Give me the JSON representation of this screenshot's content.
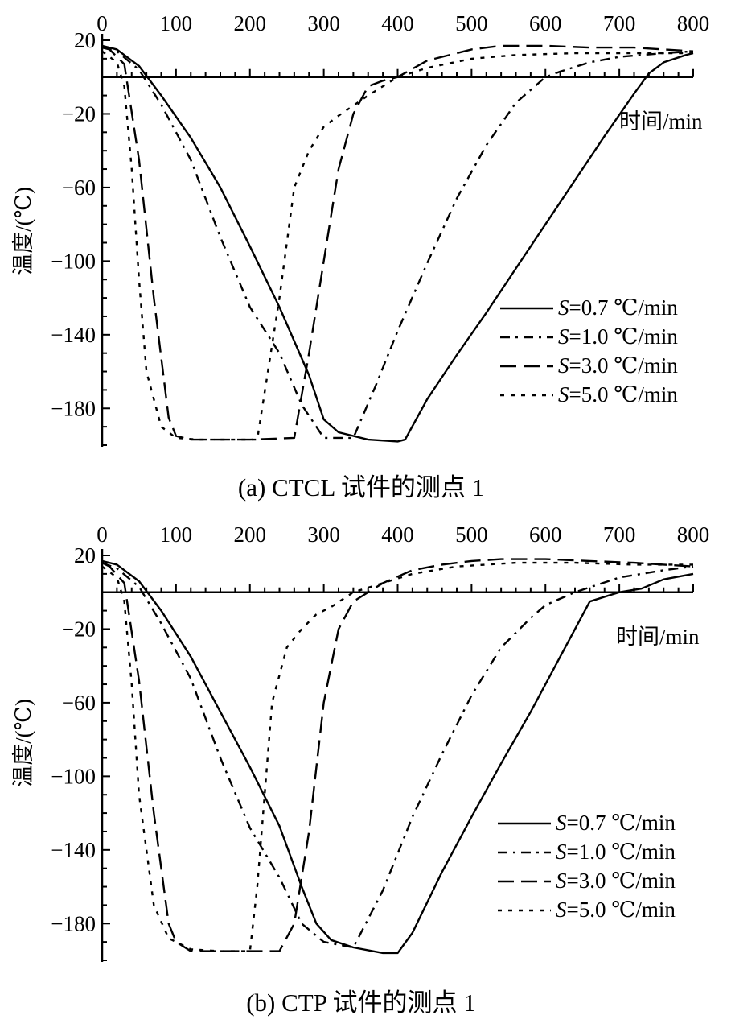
{
  "chart_data": [
    {
      "type": "line",
      "caption": "(a) CTCL 试件的测点 1",
      "xlabel": "时间/min",
      "ylabel": "温度/(℃)",
      "x_ticks": [
        0,
        100,
        200,
        300,
        400,
        500,
        600,
        700,
        800
      ],
      "y_ticks": [
        20,
        -20,
        -60,
        -100,
        -140,
        -180
      ],
      "xlim": [
        0,
        800
      ],
      "ylim": [
        -200,
        20
      ],
      "legend": {
        "position": "right"
      },
      "series": [
        {
          "name": "S=0.7 ℃/min",
          "dash": "solid",
          "x": [
            0,
            20,
            50,
            80,
            120,
            160,
            200,
            240,
            280,
            300,
            320,
            360,
            400,
            410,
            440,
            480,
            520,
            560,
            600,
            640,
            680,
            720,
            740,
            760,
            790,
            800
          ],
          "y": [
            17,
            15,
            6,
            -10,
            -33,
            -60,
            -92,
            -125,
            -162,
            -186,
            -193,
            -197,
            -198,
            -197,
            -175,
            -151,
            -128,
            -104,
            -80,
            -56,
            -32,
            -9,
            2,
            8,
            12,
            13
          ]
        },
        {
          "name": "S=1.0 ℃/min",
          "dash": "dash-dot",
          "x": [
            0,
            20,
            50,
            80,
            120,
            160,
            200,
            240,
            270,
            300,
            340,
            370,
            400,
            440,
            480,
            520,
            560,
            600,
            620,
            660,
            700,
            760,
            800
          ],
          "y": [
            16,
            14,
            4,
            -15,
            -45,
            -87,
            -125,
            -150,
            -178,
            -196,
            -196,
            -168,
            -138,
            -101,
            -66,
            -37,
            -14,
            0,
            3,
            8,
            11,
            13,
            14
          ]
        },
        {
          "name": "S=3.0 ℃/min",
          "dash": "dash",
          "x": [
            0,
            10,
            30,
            50,
            70,
            90,
            100,
            120,
            200,
            260,
            280,
            300,
            320,
            340,
            360,
            380,
            400,
            440,
            500,
            540,
            600,
            660,
            720,
            760,
            800
          ],
          "y": [
            17,
            15,
            7,
            -45,
            -120,
            -185,
            -195,
            -197,
            -197,
            -196,
            -150,
            -100,
            -50,
            -20,
            -5,
            -2,
            0,
            9,
            15,
            17,
            17,
            16,
            16,
            15,
            14
          ]
        },
        {
          "name": "S=5.0 ℃/min",
          "dash": "dot",
          "x": [
            0,
            20,
            30,
            40,
            50,
            60,
            80,
            100,
            130,
            160,
            200,
            210,
            240,
            260,
            280,
            300,
            320,
            360,
            400,
            440,
            500,
            560,
            640,
            720,
            800
          ],
          "y": [
            14,
            8,
            -5,
            -50,
            -110,
            -160,
            -190,
            -196,
            -197,
            -197,
            -197,
            -197,
            -120,
            -60,
            -40,
            -27,
            -21,
            -10,
            0,
            5,
            10,
            12,
            13,
            13,
            13
          ]
        }
      ],
      "legend_entries": [
        {
          "var": "S",
          "text": "=0.7 ℃/min"
        },
        {
          "var": "S",
          "text": "=1.0 ℃/min"
        },
        {
          "var": "S",
          "text": "=3.0 ℃/min"
        },
        {
          "var": "S",
          "text": "=5.0 ℃/min"
        }
      ]
    },
    {
      "type": "line",
      "caption": "(b) CTP 试件的测点 1",
      "xlabel": "时间/min",
      "ylabel": "温度/(℃)",
      "x_ticks": [
        0,
        100,
        200,
        300,
        400,
        500,
        600,
        700,
        800
      ],
      "y_ticks": [
        20,
        -20,
        -60,
        -100,
        -140,
        -180
      ],
      "xlim": [
        0,
        800
      ],
      "ylim": [
        -200,
        20
      ],
      "legend": {
        "position": "right"
      },
      "series": [
        {
          "name": "S=0.7 ℃/min",
          "dash": "solid",
          "x": [
            0,
            20,
            50,
            80,
            120,
            160,
            200,
            240,
            270,
            290,
            310,
            340,
            380,
            400,
            420,
            460,
            500,
            540,
            580,
            620,
            660,
            700,
            730,
            760,
            800
          ],
          "y": [
            17,
            15,
            6,
            -10,
            -35,
            -65,
            -95,
            -127,
            -160,
            -180,
            -189,
            -193,
            -196,
            -196,
            -185,
            -152,
            -122,
            -93,
            -65,
            -35,
            -5,
            0,
            2,
            7,
            10
          ]
        },
        {
          "name": "S=1.0 ℃/min",
          "dash": "dash-dot",
          "x": [
            0,
            20,
            50,
            80,
            120,
            160,
            200,
            240,
            270,
            300,
            340,
            380,
            420,
            460,
            500,
            540,
            580,
            600,
            640,
            700,
            760,
            800
          ],
          "y": [
            16,
            13,
            3,
            -17,
            -47,
            -90,
            -128,
            -155,
            -180,
            -190,
            -193,
            -162,
            -122,
            -88,
            -56,
            -30,
            -14,
            -7,
            0,
            8,
            12,
            14
          ]
        },
        {
          "name": "S=3.0 ℃/min",
          "dash": "dash",
          "x": [
            0,
            10,
            30,
            50,
            70,
            90,
            100,
            120,
            160,
            240,
            260,
            280,
            300,
            320,
            340,
            380,
            420,
            460,
            500,
            540,
            600,
            660,
            720,
            760,
            800
          ],
          "y": [
            16,
            14,
            5,
            -48,
            -120,
            -180,
            -190,
            -195,
            -195,
            -195,
            -180,
            -130,
            -60,
            -20,
            -5,
            5,
            12,
            15,
            17,
            18,
            18,
            17,
            16,
            15,
            14
          ]
        },
        {
          "name": "S=5.0 ℃/min",
          "dash": "dot",
          "x": [
            0,
            20,
            30,
            40,
            50,
            70,
            90,
            120,
            160,
            200,
            210,
            230,
            250,
            270,
            290,
            310,
            340,
            380,
            420,
            480,
            560,
            640,
            720,
            800
          ],
          "y": [
            14,
            8,
            -5,
            -50,
            -110,
            -170,
            -188,
            -194,
            -195,
            -195,
            -160,
            -60,
            -30,
            -20,
            -12,
            -8,
            0,
            5,
            10,
            14,
            16,
            16,
            15,
            15
          ]
        }
      ],
      "legend_entries": [
        {
          "var": "S",
          "text": "=0.7 ℃/min"
        },
        {
          "var": "S",
          "text": "=1.0 ℃/min"
        },
        {
          "var": "S",
          "text": "=3.0 ℃/min"
        },
        {
          "var": "S",
          "text": "=5.0 ℃/min"
        }
      ]
    }
  ]
}
